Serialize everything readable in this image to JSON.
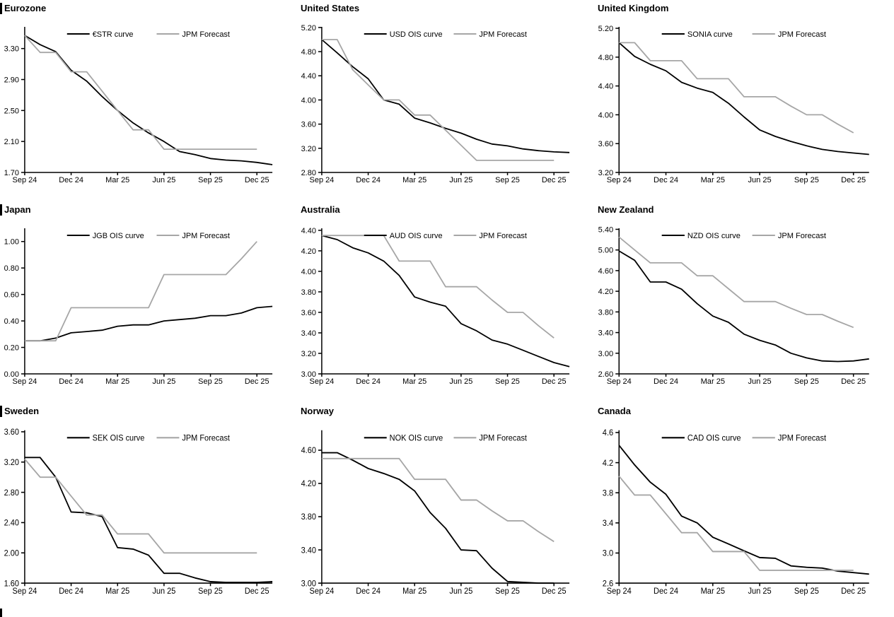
{
  "chart_data": [
    {
      "type": "line",
      "title": "Eurozone",
      "xlabel": "",
      "ylabel": "",
      "legend_position": "top",
      "grid": false,
      "ylim": [
        1.7,
        3.58
      ],
      "x_axis_units": 16,
      "y_ticks": [
        {
          "v": 1.7,
          "label": "1.70"
        },
        {
          "v": 2.1,
          "label": "2.10"
        },
        {
          "v": 2.5,
          "label": "2.50"
        },
        {
          "v": 2.9,
          "label": "2.90"
        },
        {
          "v": 3.3,
          "label": "3.30"
        }
      ],
      "x_ticks": [
        {
          "i": 0,
          "label": "Sep 24"
        },
        {
          "i": 3,
          "label": "Dec 24"
        },
        {
          "i": 6,
          "label": "Mar 25"
        },
        {
          "i": 9,
          "label": "Jun 25"
        },
        {
          "i": 12,
          "label": "Sep 25"
        },
        {
          "i": 15,
          "label": "Dec 25"
        }
      ],
      "series": [
        {
          "name": "€STR curve",
          "color": "#000000",
          "values": [
            3.47,
            3.35,
            3.26,
            3.02,
            2.88,
            2.68,
            2.5,
            2.34,
            2.21,
            2.1,
            1.97,
            1.93,
            1.88,
            1.86,
            1.85,
            1.83,
            1.8
          ]
        },
        {
          "name": "JPM Forecast",
          "color": "#a6a6a6",
          "values": [
            3.47,
            3.25,
            3.25,
            3.0,
            3.0,
            2.75,
            2.5,
            2.25,
            2.25,
            2.0,
            2.0,
            2.0,
            2.0,
            2.0,
            2.0,
            2.0
          ]
        }
      ]
    },
    {
      "type": "line",
      "title": "United States",
      "xlabel": "",
      "ylabel": "",
      "legend_position": "top",
      "grid": false,
      "ylim": [
        2.8,
        5.21
      ],
      "x_axis_units": 16,
      "y_ticks": [
        {
          "v": 2.8,
          "label": "2.80"
        },
        {
          "v": 3.2,
          "label": "3.20"
        },
        {
          "v": 3.6,
          "label": "3.60"
        },
        {
          "v": 4.0,
          "label": "4.00"
        },
        {
          "v": 4.4,
          "label": "4.40"
        },
        {
          "v": 4.8,
          "label": "4.80"
        },
        {
          "v": 5.2,
          "label": "5.20"
        }
      ],
      "x_ticks": [
        {
          "i": 0,
          "label": "Sep 24"
        },
        {
          "i": 3,
          "label": "Dec 24"
        },
        {
          "i": 6,
          "label": "Mar 25"
        },
        {
          "i": 9,
          "label": "Jun 25"
        },
        {
          "i": 12,
          "label": "Sep 25"
        },
        {
          "i": 15,
          "label": "Dec 25"
        }
      ],
      "series": [
        {
          "name": "USD OIS curve",
          "color": "#000000",
          "values": [
            5.0,
            4.78,
            4.55,
            4.35,
            4.0,
            3.93,
            3.7,
            3.62,
            3.53,
            3.45,
            3.35,
            3.27,
            3.24,
            3.19,
            3.16,
            3.14,
            3.13
          ]
        },
        {
          "name": "JPM Forecast",
          "color": "#a6a6a6",
          "values": [
            5.0,
            5.0,
            4.5,
            4.25,
            4.0,
            4.0,
            3.75,
            3.75,
            3.5,
            3.25,
            3.0,
            3.0,
            3.0,
            3.0,
            3.0,
            3.0
          ]
        }
      ]
    },
    {
      "type": "line",
      "title": "United Kingdom",
      "xlabel": "",
      "ylabel": "",
      "legend_position": "top",
      "grid": false,
      "ylim": [
        3.2,
        5.22
      ],
      "x_axis_units": 16,
      "y_ticks": [
        {
          "v": 3.2,
          "label": "3.20"
        },
        {
          "v": 3.6,
          "label": "3.60"
        },
        {
          "v": 4.0,
          "label": "4.00"
        },
        {
          "v": 4.4,
          "label": "4.40"
        },
        {
          "v": 4.8,
          "label": "4.80"
        },
        {
          "v": 5.2,
          "label": "5.20"
        }
      ],
      "x_ticks": [
        {
          "i": 0,
          "label": "Sep 24"
        },
        {
          "i": 3,
          "label": "Dec 24"
        },
        {
          "i": 6,
          "label": "Mar 25"
        },
        {
          "i": 9,
          "label": "Jun 25"
        },
        {
          "i": 12,
          "label": "Sep 25"
        },
        {
          "i": 15,
          "label": "Dec 25"
        }
      ],
      "series": [
        {
          "name": "SONIA curve",
          "color": "#000000",
          "values": [
            5.0,
            4.81,
            4.7,
            4.61,
            4.45,
            4.37,
            4.31,
            4.16,
            3.97,
            3.79,
            3.7,
            3.63,
            3.57,
            3.52,
            3.49,
            3.47,
            3.45
          ]
        },
        {
          "name": "JPM Forecast",
          "color": "#a6a6a6",
          "values": [
            5.0,
            5.0,
            4.75,
            4.75,
            4.75,
            4.5,
            4.5,
            4.5,
            4.25,
            4.25,
            4.25,
            4.12,
            4.0,
            4.0,
            3.87,
            3.75
          ]
        }
      ]
    },
    {
      "type": "line",
      "title": "Japan",
      "xlabel": "",
      "ylabel": "",
      "legend_position": "top",
      "grid": false,
      "ylim": [
        0.0,
        1.1
      ],
      "x_axis_units": 16,
      "y_ticks": [
        {
          "v": 0.0,
          "label": "0.00"
        },
        {
          "v": 0.2,
          "label": "0.20"
        },
        {
          "v": 0.4,
          "label": "0.40"
        },
        {
          "v": 0.6,
          "label": "0.60"
        },
        {
          "v": 0.8,
          "label": "0.80"
        },
        {
          "v": 1.0,
          "label": "1.00"
        }
      ],
      "x_ticks": [
        {
          "i": 0,
          "label": "Sep 24"
        },
        {
          "i": 3,
          "label": "Dec 24"
        },
        {
          "i": 6,
          "label": "Mar 25"
        },
        {
          "i": 9,
          "label": "Jun 25"
        },
        {
          "i": 12,
          "label": "Sep 25"
        },
        {
          "i": 15,
          "label": "Dec 25"
        }
      ],
      "series": [
        {
          "name": "JGB OIS curve",
          "color": "#000000",
          "values": [
            0.25,
            0.25,
            0.27,
            0.31,
            0.32,
            0.33,
            0.36,
            0.37,
            0.37,
            0.4,
            0.41,
            0.42,
            0.44,
            0.44,
            0.46,
            0.5,
            0.51
          ]
        },
        {
          "name": "JPM Forecast",
          "color": "#a6a6a6",
          "values": [
            0.25,
            0.25,
            0.25,
            0.5,
            0.5,
            0.5,
            0.5,
            0.5,
            0.5,
            0.75,
            0.75,
            0.75,
            0.75,
            0.75,
            0.87,
            1.0
          ]
        }
      ]
    },
    {
      "type": "line",
      "title": "Australia",
      "xlabel": "",
      "ylabel": "",
      "legend_position": "top",
      "grid": false,
      "ylim": [
        3.0,
        4.42
      ],
      "x_axis_units": 16,
      "y_ticks": [
        {
          "v": 3.0,
          "label": "3.00"
        },
        {
          "v": 3.2,
          "label": "3.20"
        },
        {
          "v": 3.4,
          "label": "3.40"
        },
        {
          "v": 3.6,
          "label": "3.60"
        },
        {
          "v": 3.8,
          "label": "3.80"
        },
        {
          "v": 4.0,
          "label": "4.00"
        },
        {
          "v": 4.2,
          "label": "4.20"
        },
        {
          "v": 4.4,
          "label": "4.40"
        }
      ],
      "x_ticks": [
        {
          "i": 0,
          "label": "Sep 24"
        },
        {
          "i": 3,
          "label": "Dec 24"
        },
        {
          "i": 6,
          "label": "Mar 25"
        },
        {
          "i": 9,
          "label": "Jun 25"
        },
        {
          "i": 12,
          "label": "Sep 25"
        },
        {
          "i": 15,
          "label": "Dec 25"
        }
      ],
      "series": [
        {
          "name": "AUD OIS curve",
          "color": "#000000",
          "values": [
            4.35,
            4.31,
            4.23,
            4.18,
            4.1,
            3.96,
            3.75,
            3.7,
            3.66,
            3.49,
            3.42,
            3.33,
            3.29,
            3.23,
            3.17,
            3.11,
            3.07
          ]
        },
        {
          "name": "JPM Forecast",
          "color": "#a6a6a6",
          "values": [
            4.35,
            4.35,
            4.35,
            4.35,
            4.35,
            4.1,
            4.1,
            4.1,
            3.85,
            3.85,
            3.85,
            3.72,
            3.6,
            3.6,
            3.47,
            3.35
          ]
        }
      ]
    },
    {
      "type": "line",
      "title": "New Zealand",
      "xlabel": "",
      "ylabel": "",
      "legend_position": "top",
      "grid": false,
      "ylim": [
        2.6,
        5.42
      ],
      "x_axis_units": 16,
      "y_ticks": [
        {
          "v": 2.6,
          "label": "2.60"
        },
        {
          "v": 3.0,
          "label": "3.00"
        },
        {
          "v": 3.4,
          "label": "3.40"
        },
        {
          "v": 3.8,
          "label": "3.80"
        },
        {
          "v": 4.2,
          "label": "4.20"
        },
        {
          "v": 4.6,
          "label": "4.60"
        },
        {
          "v": 5.0,
          "label": "5.00"
        },
        {
          "v": 5.4,
          "label": "5.40"
        }
      ],
      "x_ticks": [
        {
          "i": 0,
          "label": "Sep 24"
        },
        {
          "i": 3,
          "label": "Dec 24"
        },
        {
          "i": 6,
          "label": "Mar 25"
        },
        {
          "i": 9,
          "label": "Jun 25"
        },
        {
          "i": 12,
          "label": "Sep 25"
        },
        {
          "i": 15,
          "label": "Dec 25"
        }
      ],
      "series": [
        {
          "name": "NZD OIS curve",
          "color": "#000000",
          "values": [
            4.98,
            4.8,
            4.38,
            4.38,
            4.24,
            3.96,
            3.72,
            3.6,
            3.37,
            3.25,
            3.16,
            3.0,
            2.91,
            2.85,
            2.84,
            2.85,
            2.89
          ]
        },
        {
          "name": "JPM Forecast",
          "color": "#a6a6a6",
          "values": [
            5.25,
            5.0,
            4.75,
            4.75,
            4.75,
            4.5,
            4.5,
            4.25,
            4.0,
            4.0,
            4.0,
            3.87,
            3.75,
            3.75,
            3.62,
            3.5
          ]
        }
      ]
    },
    {
      "type": "line",
      "title": "Sweden",
      "xlabel": "",
      "ylabel": "",
      "legend_position": "top",
      "grid": false,
      "ylim": [
        1.6,
        3.62
      ],
      "x_axis_units": 16,
      "y_ticks": [
        {
          "v": 1.6,
          "label": "1.60"
        },
        {
          "v": 2.0,
          "label": "2.00"
        },
        {
          "v": 2.4,
          "label": "2.40"
        },
        {
          "v": 2.8,
          "label": "2.80"
        },
        {
          "v": 3.2,
          "label": "3.20"
        },
        {
          "v": 3.6,
          "label": "3.60"
        }
      ],
      "x_ticks": [
        {
          "i": 0,
          "label": "Sep 24"
        },
        {
          "i": 3,
          "label": "Dec 24"
        },
        {
          "i": 6,
          "label": "Mar 25"
        },
        {
          "i": 9,
          "label": "Jun 25"
        },
        {
          "i": 12,
          "label": "Sep 25"
        },
        {
          "i": 15,
          "label": "Dec 25"
        }
      ],
      "series": [
        {
          "name": "SEK OIS curve",
          "color": "#000000",
          "values": [
            3.26,
            3.26,
            3.0,
            2.54,
            2.53,
            2.48,
            2.07,
            2.05,
            1.97,
            1.73,
            1.73,
            1.67,
            1.62,
            1.61,
            1.61,
            1.61,
            1.62
          ]
        },
        {
          "name": "JPM Forecast",
          "color": "#a6a6a6",
          "values": [
            3.24,
            3.0,
            3.0,
            2.75,
            2.5,
            2.5,
            2.25,
            2.25,
            2.25,
            2.0,
            2.0,
            2.0,
            2.0,
            2.0,
            2.0,
            2.0
          ]
        }
      ]
    },
    {
      "type": "line",
      "title": "Norway",
      "xlabel": "",
      "ylabel": "",
      "legend_position": "top",
      "grid": false,
      "ylim": [
        3.0,
        4.84
      ],
      "x_axis_units": 16,
      "y_ticks": [
        {
          "v": 3.0,
          "label": "3.00"
        },
        {
          "v": 3.4,
          "label": "3.40"
        },
        {
          "v": 3.8,
          "label": "3.80"
        },
        {
          "v": 4.2,
          "label": "4.20"
        },
        {
          "v": 4.6,
          "label": "4.60"
        }
      ],
      "x_ticks": [
        {
          "i": 0,
          "label": "Sep 24"
        },
        {
          "i": 3,
          "label": "Dec 24"
        },
        {
          "i": 6,
          "label": "Mar 25"
        },
        {
          "i": 9,
          "label": "Jun 25"
        },
        {
          "i": 12,
          "label": "Sep 25"
        },
        {
          "i": 15,
          "label": "Dec 25"
        }
      ],
      "series": [
        {
          "name": "NOK OIS curve",
          "color": "#000000",
          "values": [
            4.57,
            4.57,
            4.48,
            4.38,
            4.32,
            4.25,
            4.11,
            3.85,
            3.66,
            3.4,
            3.39,
            3.18,
            3.02,
            3.01,
            3.0,
            3.0
          ]
        },
        {
          "name": "JPM Forecast",
          "color": "#a6a6a6",
          "values": [
            4.5,
            4.5,
            4.5,
            4.5,
            4.5,
            4.5,
            4.25,
            4.25,
            4.25,
            4.0,
            4.0,
            3.87,
            3.75,
            3.75,
            3.62,
            3.5
          ]
        }
      ]
    },
    {
      "type": "line",
      "title": "Canada",
      "xlabel": "",
      "ylabel": "",
      "legend_position": "top",
      "grid": false,
      "ylim": [
        2.6,
        4.63
      ],
      "x_axis_units": 16,
      "y_ticks": [
        {
          "v": 2.6,
          "label": "2.6"
        },
        {
          "v": 3.0,
          "label": "3.0"
        },
        {
          "v": 3.4,
          "label": "3.4"
        },
        {
          "v": 3.8,
          "label": "3.8"
        },
        {
          "v": 4.2,
          "label": "4.2"
        },
        {
          "v": 4.6,
          "label": "4.6"
        }
      ],
      "x_ticks": [
        {
          "i": 0,
          "label": "Sep 24"
        },
        {
          "i": 3,
          "label": "Dec 24"
        },
        {
          "i": 6,
          "label": "Mar 25"
        },
        {
          "i": 9,
          "label": "Jun 25"
        },
        {
          "i": 12,
          "label": "Sep 25"
        },
        {
          "i": 15,
          "label": "Dec 25"
        }
      ],
      "series": [
        {
          "name": "CAD OIS curve",
          "color": "#000000",
          "values": [
            4.43,
            4.17,
            3.94,
            3.78,
            3.49,
            3.4,
            3.21,
            3.12,
            3.03,
            2.94,
            2.93,
            2.83,
            2.81,
            2.8,
            2.76,
            2.74,
            2.72
          ]
        },
        {
          "name": "JPM Forecast",
          "color": "#a6a6a6",
          "values": [
            4.02,
            3.77,
            3.77,
            3.52,
            3.27,
            3.27,
            3.02,
            3.02,
            3.02,
            2.77,
            2.77,
            2.77,
            2.77,
            2.77,
            2.77,
            2.77
          ]
        }
      ]
    }
  ]
}
